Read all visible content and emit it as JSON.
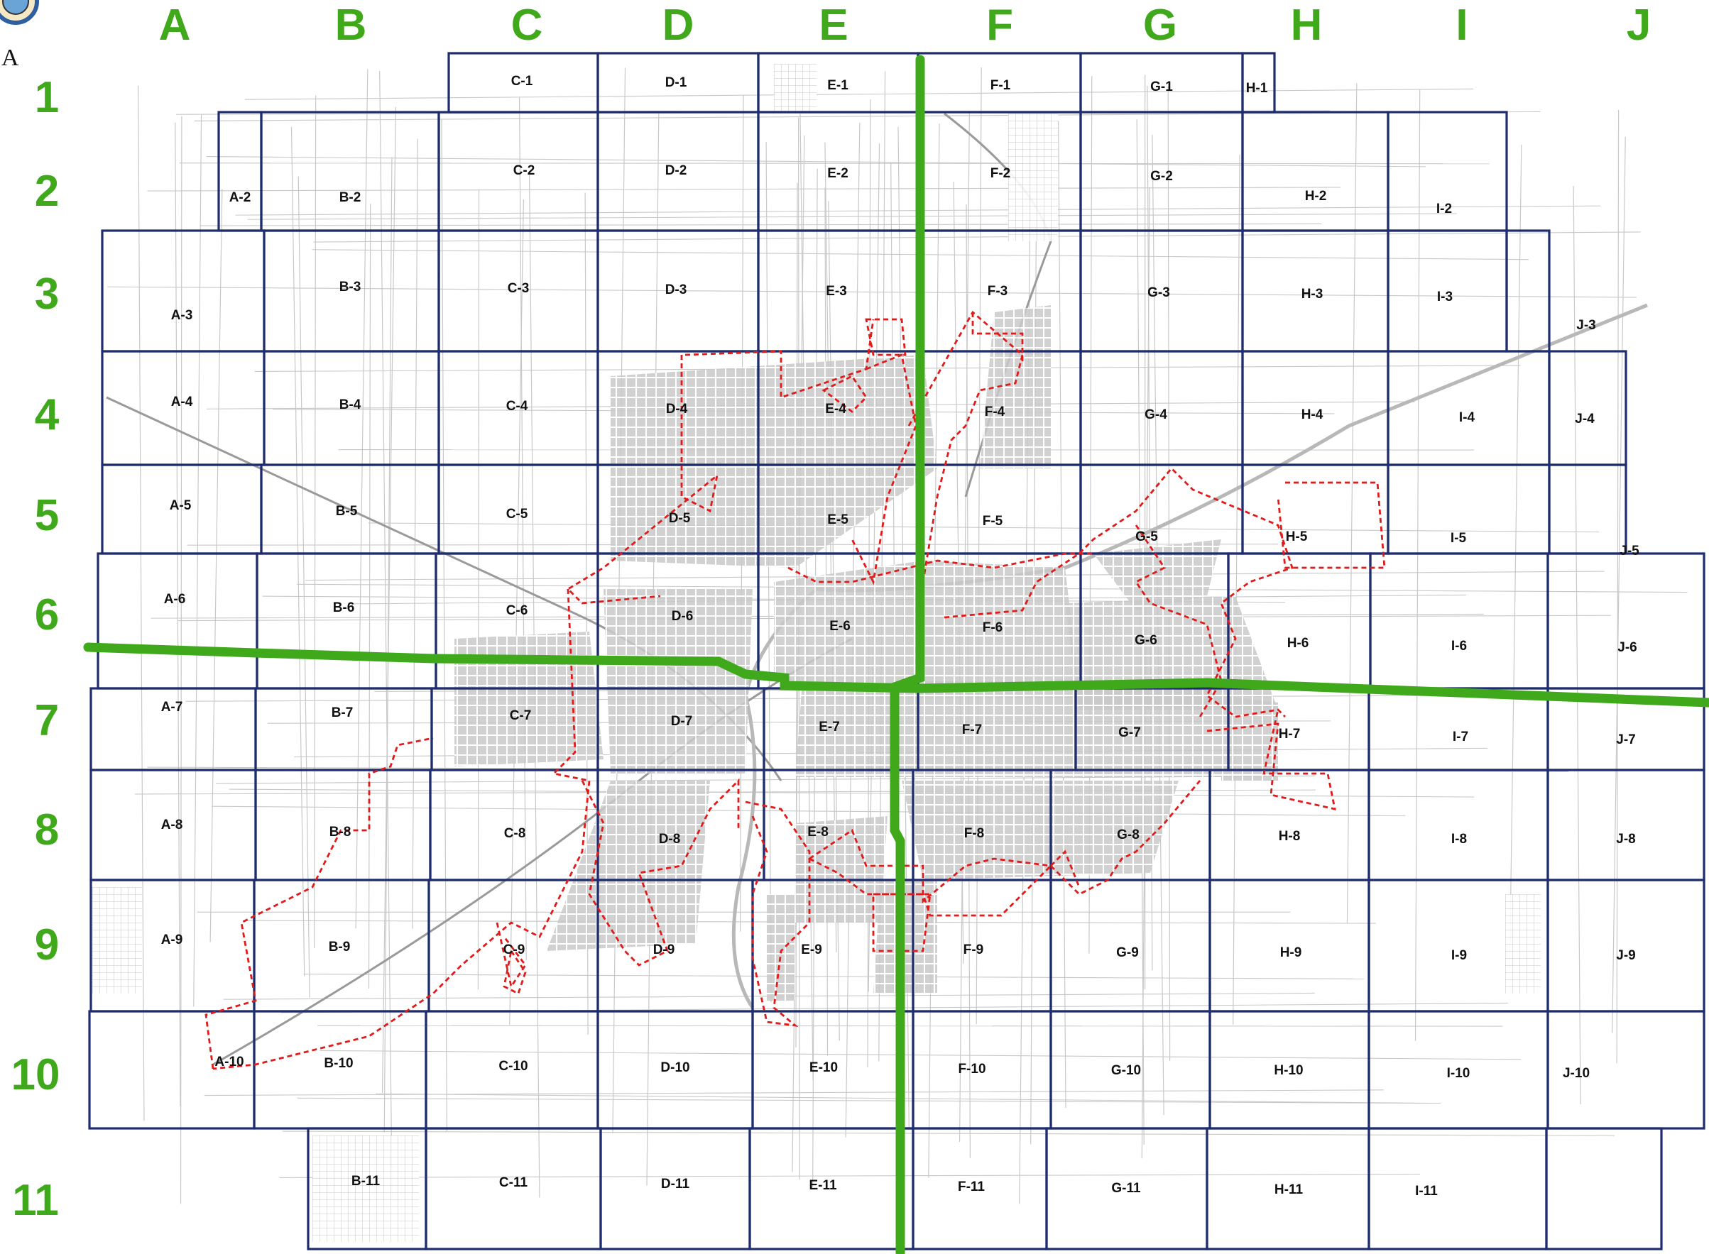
{
  "colors": {
    "grid_lines": "#1f2d6e",
    "axis_labels": "#3fa81b",
    "divider_lines": "#3fa81b",
    "city_limits": "#e01b1b",
    "streets": "#c8c8c8",
    "urban_blocks": "#b0b0b0",
    "background": "#ffffff"
  },
  "logo": {
    "icon": "city-seal-icon",
    "visible_text": "A"
  },
  "columns": [
    "A",
    "B",
    "C",
    "D",
    "E",
    "F",
    "G",
    "H",
    "I",
    "J"
  ],
  "rows": [
    "1",
    "2",
    "3",
    "4",
    "5",
    "6",
    "7",
    "8",
    "9",
    "10",
    "11"
  ],
  "cells": [
    [
      "C-1",
      "D-1",
      "E-1",
      "F-1",
      "G-1",
      "H-1"
    ],
    [
      "A-2",
      "B-2",
      "C-2",
      "D-2",
      "E-2",
      "F-2",
      "G-2",
      "H-2",
      "I-2"
    ],
    [
      "A-3",
      "B-3",
      "C-3",
      "D-3",
      "E-3",
      "F-3",
      "G-3",
      "H-3",
      "I-3",
      "J-3"
    ],
    [
      "A-4",
      "B-4",
      "C-4",
      "D-4",
      "E-4",
      "F-4",
      "G-4",
      "H-4",
      "I-4",
      "J-4"
    ],
    [
      "A-5",
      "B-5",
      "C-5",
      "D-5",
      "E-5",
      "F-5",
      "G-5",
      "H-5",
      "I-5",
      "J-5"
    ],
    [
      "A-6",
      "B-6",
      "C-6",
      "D-6",
      "E-6",
      "F-6",
      "G-6",
      "H-6",
      "I-6",
      "J-6"
    ],
    [
      "A-7",
      "B-7",
      "C-7",
      "D-7",
      "E-7",
      "F-7",
      "G-7",
      "H-7",
      "I-7",
      "J-7"
    ],
    [
      "A-8",
      "B-8",
      "C-8",
      "D-8",
      "E-8",
      "F-8",
      "G-8",
      "H-8",
      "I-8",
      "J-8"
    ],
    [
      "A-9",
      "B-9",
      "C-9",
      "D-9",
      "E-9",
      "F-9",
      "G-9",
      "H-9",
      "I-9",
      "J-9"
    ],
    [
      "A-10",
      "B-10",
      "C-10",
      "D-10",
      "E-10",
      "F-10",
      "G-10",
      "H-10",
      "I-10",
      "J-10"
    ],
    [
      "B-11",
      "C-11",
      "D-11",
      "E-11",
      "F-11",
      "G-11",
      "H-11",
      "I-11"
    ]
  ],
  "layers": {
    "grid": "grid-lines",
    "dividers": "green-divider-lines",
    "city_limits": "city-limits-boundary",
    "streets": "street-network",
    "urban": "urban-block-fill"
  }
}
